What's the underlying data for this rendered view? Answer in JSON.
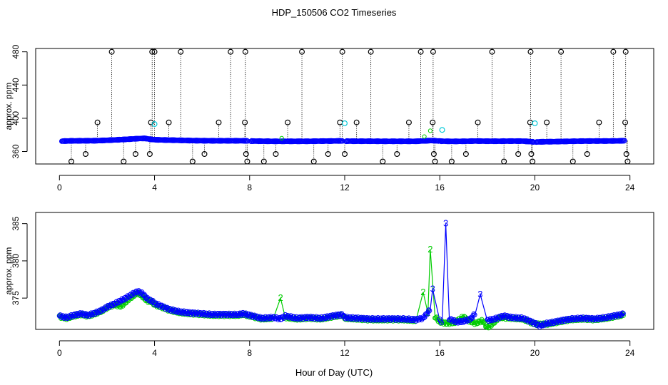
{
  "figure": {
    "title": "HDP_150506  CO2 Timeseries",
    "xlabel": "Hour of Day (UTC)"
  },
  "chart_data": [
    {
      "type": "scatter",
      "panel": "top",
      "title": "",
      "xlabel": "",
      "ylabel": "approx. ppm",
      "xlim": [
        -1,
        25
      ],
      "ylim": [
        345,
        484
      ],
      "xticks": [
        0,
        4,
        8,
        12,
        16,
        20,
        24
      ],
      "yticks": [
        360,
        400,
        440,
        480
      ],
      "grid": false,
      "legend": "none",
      "baseline": {
        "name": "instrument CO2 (blue circles, ~1 min)",
        "color": "#0000ff",
        "x": [
          0.1,
          0.5,
          1.0,
          1.5,
          2.0,
          2.5,
          2.9,
          3.3,
          3.6,
          3.8,
          4.0,
          4.5,
          5.0,
          5.5,
          6.0,
          6.5,
          7.0,
          7.5,
          7.8,
          8.0,
          8.5,
          9.0,
          9.5,
          10.0,
          10.5,
          11.0,
          11.5,
          11.8,
          12.0,
          12.5,
          13.0,
          13.5,
          14.0,
          14.5,
          15.0,
          15.3,
          15.6,
          15.8,
          16.0,
          16.5,
          17.0,
          17.5,
          18.0,
          18.5,
          19.0,
          19.5,
          20.0,
          20.5,
          21.0,
          21.5,
          22.0,
          22.5,
          23.0,
          23.5,
          23.8
        ],
        "y": [
          372.5,
          372.8,
          372.9,
          373.0,
          373.5,
          374.2,
          374.8,
          375.5,
          375.8,
          374.8,
          374.2,
          373.8,
          373.5,
          373.2,
          373.0,
          372.9,
          372.9,
          372.9,
          372.9,
          372.6,
          372.4,
          372.3,
          372.3,
          372.3,
          372.3,
          372.5,
          372.6,
          372.8,
          372.5,
          372.4,
          372.4,
          372.3,
          372.3,
          372.3,
          372.3,
          372.7,
          373.2,
          373.0,
          372.5,
          372.2,
          372.3,
          372.6,
          372.4,
          372.4,
          372.5,
          372.5,
          371.5,
          371.8,
          372.0,
          372.3,
          372.5,
          372.6,
          372.6,
          372.8,
          373.0
        ]
      },
      "flagged_points": {
        "name": "flagged / despiked readings (black circles on dotted drop lines)",
        "color": "#000000",
        "x": [
          0.5,
          1.1,
          1.6,
          2.2,
          2.7,
          3.2,
          3.8,
          3.85,
          3.9,
          4.0,
          4.6,
          5.1,
          5.6,
          6.1,
          6.7,
          7.2,
          7.8,
          7.82,
          7.85,
          7.9,
          8.6,
          9.1,
          9.6,
          10.2,
          10.7,
          11.3,
          11.8,
          11.9,
          12.0,
          12.5,
          13.1,
          13.6,
          14.2,
          14.7,
          15.2,
          15.7,
          15.72,
          15.75,
          15.8,
          16.5,
          17.1,
          17.6,
          18.2,
          18.7,
          19.3,
          19.8,
          19.82,
          19.85,
          19.9,
          20.5,
          21.1,
          21.6,
          22.2,
          22.7,
          23.3,
          23.8,
          23.82,
          23.85,
          23.9
        ],
        "y": [
          348,
          357,
          395,
          480,
          348,
          357,
          357,
          395,
          480,
          480,
          395,
          480,
          348,
          357,
          395,
          480,
          395,
          480,
          357,
          348,
          348,
          357,
          395,
          480,
          348,
          357,
          395,
          480,
          357,
          395,
          480,
          348,
          357,
          395,
          480,
          395,
          480,
          357,
          348,
          348,
          357,
          395,
          480,
          348,
          357,
          395,
          480,
          357,
          348,
          395,
          480,
          348,
          357,
          395,
          480,
          395,
          480,
          357,
          348
        ]
      },
      "cyan_points": {
        "name": "secondary instrument (cyan)",
        "color": "#00c8d8",
        "x": [
          4.0,
          12.0,
          16.1,
          20.0
        ],
        "y": [
          393,
          394,
          386,
          394
        ]
      }
    },
    {
      "type": "line",
      "panel": "bottom",
      "title": "",
      "xlabel": "Hour of Day (UTC)",
      "ylabel": "approx. ppm",
      "xlim": [
        -1,
        25
      ],
      "ylim": [
        370.8,
        386.5
      ],
      "xticks": [
        0,
        4,
        8,
        12,
        16,
        20,
        24
      ],
      "yticks": [
        375,
        380,
        385
      ],
      "grid": false,
      "legend": "none",
      "series": [
        {
          "name": "series 3 (blue)",
          "marker_label": "3",
          "color": "#0000ff",
          "x": [
            0.0,
            0.3,
            0.6,
            0.9,
            1.2,
            1.5,
            1.8,
            2.0,
            2.3,
            2.6,
            2.9,
            3.1,
            3.3,
            3.5,
            3.7,
            3.9,
            4.0,
            4.3,
            4.6,
            5.0,
            5.5,
            6.0,
            6.5,
            7.0,
            7.5,
            7.75,
            8.0,
            8.5,
            9.0,
            9.3,
            9.5,
            10.0,
            10.5,
            11.0,
            11.5,
            11.9,
            12.0,
            12.5,
            13.0,
            13.5,
            14.0,
            14.5,
            15.0,
            15.3,
            15.6,
            15.7,
            16.0,
            16.1,
            16.25,
            16.4,
            16.7,
            17.0,
            17.3,
            17.5,
            17.7,
            18.0,
            18.3,
            18.7,
            19.0,
            19.5,
            20.0,
            20.2,
            20.5,
            21.0,
            21.5,
            22.0,
            22.5,
            23.0,
            23.5,
            23.75
          ],
          "y": [
            372.6,
            372.4,
            372.7,
            372.9,
            372.7,
            373.0,
            373.4,
            373.8,
            374.2,
            374.7,
            375.2,
            375.6,
            375.9,
            375.6,
            374.9,
            374.6,
            374.3,
            373.9,
            373.5,
            373.2,
            373.0,
            372.9,
            372.8,
            372.8,
            372.8,
            372.9,
            372.7,
            372.3,
            372.4,
            372.2,
            372.6,
            372.3,
            372.4,
            372.3,
            372.6,
            372.8,
            372.4,
            372.3,
            372.2,
            372.2,
            372.2,
            372.2,
            372.1,
            372.3,
            373.5,
            376.2,
            372.0,
            371.8,
            385.0,
            372.2,
            371.8,
            371.9,
            372.2,
            373.0,
            375.5,
            372.0,
            372.2,
            372.6,
            372.4,
            372.3,
            371.6,
            371.3,
            371.6,
            371.9,
            372.2,
            372.3,
            372.2,
            372.4,
            372.7,
            372.9
          ]
        },
        {
          "name": "series 2 (green)",
          "marker_label": "2",
          "color": "#00cc00",
          "x": [
            0.0,
            0.3,
            0.6,
            0.9,
            1.2,
            1.5,
            1.8,
            2.0,
            2.3,
            2.6,
            2.9,
            3.1,
            3.3,
            3.5,
            3.7,
            3.9,
            4.0,
            4.3,
            4.6,
            5.0,
            5.5,
            6.0,
            6.5,
            7.0,
            7.5,
            7.75,
            8.0,
            8.5,
            9.0,
            9.3,
            9.5,
            10.0,
            10.5,
            11.0,
            11.5,
            11.9,
            12.0,
            12.5,
            13.0,
            13.5,
            14.0,
            14.5,
            15.0,
            15.3,
            15.5,
            15.6,
            15.8,
            16.0,
            16.3,
            16.6,
            17.0,
            17.2,
            17.5,
            17.8,
            18.0,
            18.2,
            18.5,
            19.0,
            19.5,
            20.0,
            20.5,
            21.0,
            21.5,
            22.0,
            22.5,
            23.0,
            23.5,
            23.75
          ],
          "y": [
            372.5,
            372.3,
            372.6,
            372.8,
            372.6,
            372.9,
            373.3,
            373.7,
            374.1,
            373.9,
            374.8,
            375.3,
            375.7,
            375.2,
            374.6,
            374.5,
            374.1,
            373.8,
            373.4,
            373.1,
            372.9,
            372.8,
            372.7,
            372.7,
            372.7,
            372.8,
            372.6,
            372.2,
            372.3,
            375.0,
            372.4,
            372.2,
            372.3,
            372.2,
            372.5,
            372.7,
            372.3,
            372.2,
            372.1,
            372.1,
            372.1,
            372.1,
            372.0,
            375.8,
            373.0,
            381.5,
            372.5,
            371.8,
            371.6,
            371.7,
            372.5,
            372.0,
            371.6,
            372.0,
            371.0,
            371.5,
            372.4,
            372.3,
            372.2,
            371.5,
            371.5,
            371.8,
            372.1,
            372.2,
            372.1,
            372.3,
            372.6,
            372.8
          ]
        }
      ]
    }
  ]
}
